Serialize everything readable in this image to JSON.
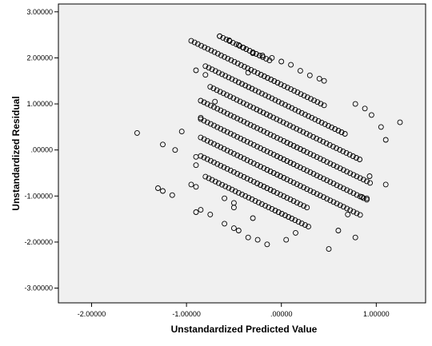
{
  "chart_data": {
    "type": "scatter",
    "xlabel": "Unstandardized Predicted Value",
    "ylabel": "Unstandardized Residual",
    "xlim": [
      -2.35,
      1.52
    ],
    "ylim": [
      -3.32,
      3.17
    ],
    "x_ticks": [
      -2,
      -1,
      0,
      1
    ],
    "x_tick_labels": [
      "-2.00000",
      "-1.00000",
      ".00000",
      "1.00000"
    ],
    "y_ticks": [
      -3,
      -2,
      -1,
      0,
      1,
      2,
      3
    ],
    "y_tick_labels": [
      "-3.00000",
      "-2.00000",
      "-1.00000",
      ".00000",
      "1.00000",
      "2.00000",
      "3.00000"
    ],
    "grid": false,
    "marker": "open-circle",
    "colors": {
      "plot_background": "#f0f0f0",
      "marker": "#000000",
      "axis": "#000000"
    },
    "bands": [
      {
        "x": [
          -0.65,
          -0.1
        ],
        "slope": -1.0,
        "intercept": 1.82
      },
      {
        "x": [
          -0.95,
          0.45
        ],
        "slope": -1.0,
        "intercept": 1.42
      },
      {
        "x": [
          -0.8,
          0.7
        ],
        "slope": -1.0,
        "intercept": 1.02
      },
      {
        "x": [
          -0.75,
          0.85
        ],
        "slope": -1.0,
        "intercept": 0.62
      },
      {
        "x": [
          -0.85,
          0.95
        ],
        "slope": -1.0,
        "intercept": 0.22
      },
      {
        "x": [
          -0.85,
          0.9
        ],
        "slope": -1.0,
        "intercept": -0.18
      },
      {
        "x": [
          -0.85,
          0.85
        ],
        "slope": -1.0,
        "intercept": -0.58
      },
      {
        "x": [
          -0.85,
          0.3
        ],
        "slope": -1.0,
        "intercept": -0.98
      },
      {
        "x": [
          -0.8,
          0.3
        ],
        "slope": -1.0,
        "intercept": -1.38
      }
    ],
    "points": [
      [
        -1.52,
        0.37
      ],
      [
        -1.3,
        -0.83
      ],
      [
        -1.25,
        0.12
      ],
      [
        -1.25,
        -0.89
      ],
      [
        -1.15,
        -0.98
      ],
      [
        -1.12,
        0.0
      ],
      [
        -1.05,
        0.4
      ],
      [
        -0.9,
        1.73
      ],
      [
        -0.8,
        1.63
      ],
      [
        -0.65,
        2.47
      ],
      [
        -0.55,
        2.38
      ],
      [
        -0.45,
        2.28
      ],
      [
        -0.4,
        2.22
      ],
      [
        -0.35,
        1.68
      ],
      [
        -0.3,
        2.1
      ],
      [
        -0.2,
        2.05
      ],
      [
        -0.1,
        2.0
      ],
      [
        0.0,
        1.92
      ],
      [
        0.1,
        1.85
      ],
      [
        0.2,
        1.72
      ],
      [
        0.3,
        1.62
      ],
      [
        0.4,
        1.55
      ],
      [
        0.45,
        1.5
      ],
      [
        0.78,
        1.0
      ],
      [
        0.88,
        0.9
      ],
      [
        0.95,
        0.76
      ],
      [
        1.05,
        0.5
      ],
      [
        1.1,
        0.22
      ],
      [
        1.25,
        0.6
      ],
      [
        1.1,
        -0.75
      ],
      [
        0.93,
        -0.57
      ],
      [
        0.9,
        -1.05
      ],
      [
        0.85,
        -1.02
      ],
      [
        0.7,
        -1.4
      ],
      [
        0.5,
        -2.15
      ],
      [
        0.6,
        -1.75
      ],
      [
        0.78,
        -1.9
      ],
      [
        0.15,
        -1.8
      ],
      [
        0.05,
        -1.95
      ],
      [
        -0.15,
        -2.05
      ],
      [
        -0.25,
        -1.95
      ],
      [
        -0.35,
        -1.9
      ],
      [
        -0.45,
        -1.75
      ],
      [
        -0.5,
        -1.7
      ],
      [
        -0.6,
        -1.6
      ],
      [
        -0.75,
        -1.4
      ],
      [
        -0.85,
        -1.3
      ],
      [
        -0.9,
        -1.35
      ],
      [
        -0.3,
        -1.48
      ],
      [
        -0.5,
        -1.25
      ],
      [
        -0.6,
        -1.05
      ],
      [
        -0.95,
        -0.75
      ],
      [
        -0.9,
        -0.8
      ],
      [
        -0.9,
        -0.15
      ],
      [
        -0.85,
        0.7
      ],
      [
        -0.7,
        1.05
      ],
      [
        -0.9,
        -0.33
      ],
      [
        -0.5,
        -1.15
      ]
    ]
  }
}
